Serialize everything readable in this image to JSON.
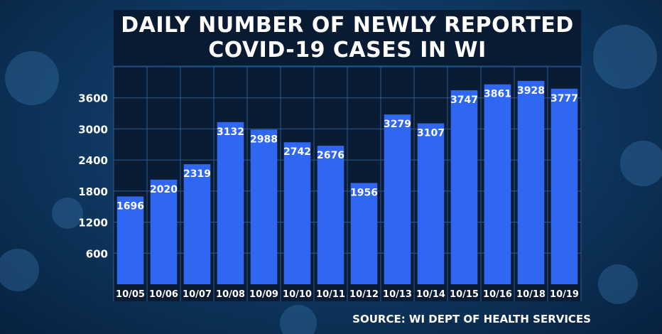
{
  "title": {
    "line1": "DAILY NUMBER OF NEWLY REPORTED",
    "line2": "COVID-19 CASES IN WI"
  },
  "source": "SOURCE: WI DEPT OF HEALTH SERVICES",
  "colors": {
    "bar": "#2f66f2",
    "plot_bg": "#0a1c33",
    "grid": "#2d5a8c",
    "text": "#ffffff"
  },
  "chart_data": {
    "type": "bar",
    "categories": [
      "10/05",
      "10/06",
      "10/07",
      "10/08",
      "10/09",
      "10/10",
      "10/11",
      "10/12",
      "10/13",
      "10/14",
      "10/15",
      "10/16",
      "10/18",
      "10/19"
    ],
    "values": [
      1696,
      2020,
      2319,
      3132,
      2988,
      2742,
      2676,
      1956,
      3279,
      3107,
      3747,
      3861,
      3928,
      3777
    ],
    "data_labels": [
      "1696",
      "2020",
      "2319",
      "3132",
      "2988",
      "2742",
      "2676",
      "1956",
      "3279",
      "3107",
      "3747",
      "3861",
      "3928",
      "3777"
    ],
    "yticks": [
      600,
      1200,
      1800,
      2400,
      3000,
      3600
    ],
    "ytick_labels": [
      "600",
      "1200",
      "1800",
      "2400",
      "3000",
      "3600"
    ],
    "ylim": [
      0,
      4200
    ],
    "grid": true,
    "legend": "none"
  }
}
